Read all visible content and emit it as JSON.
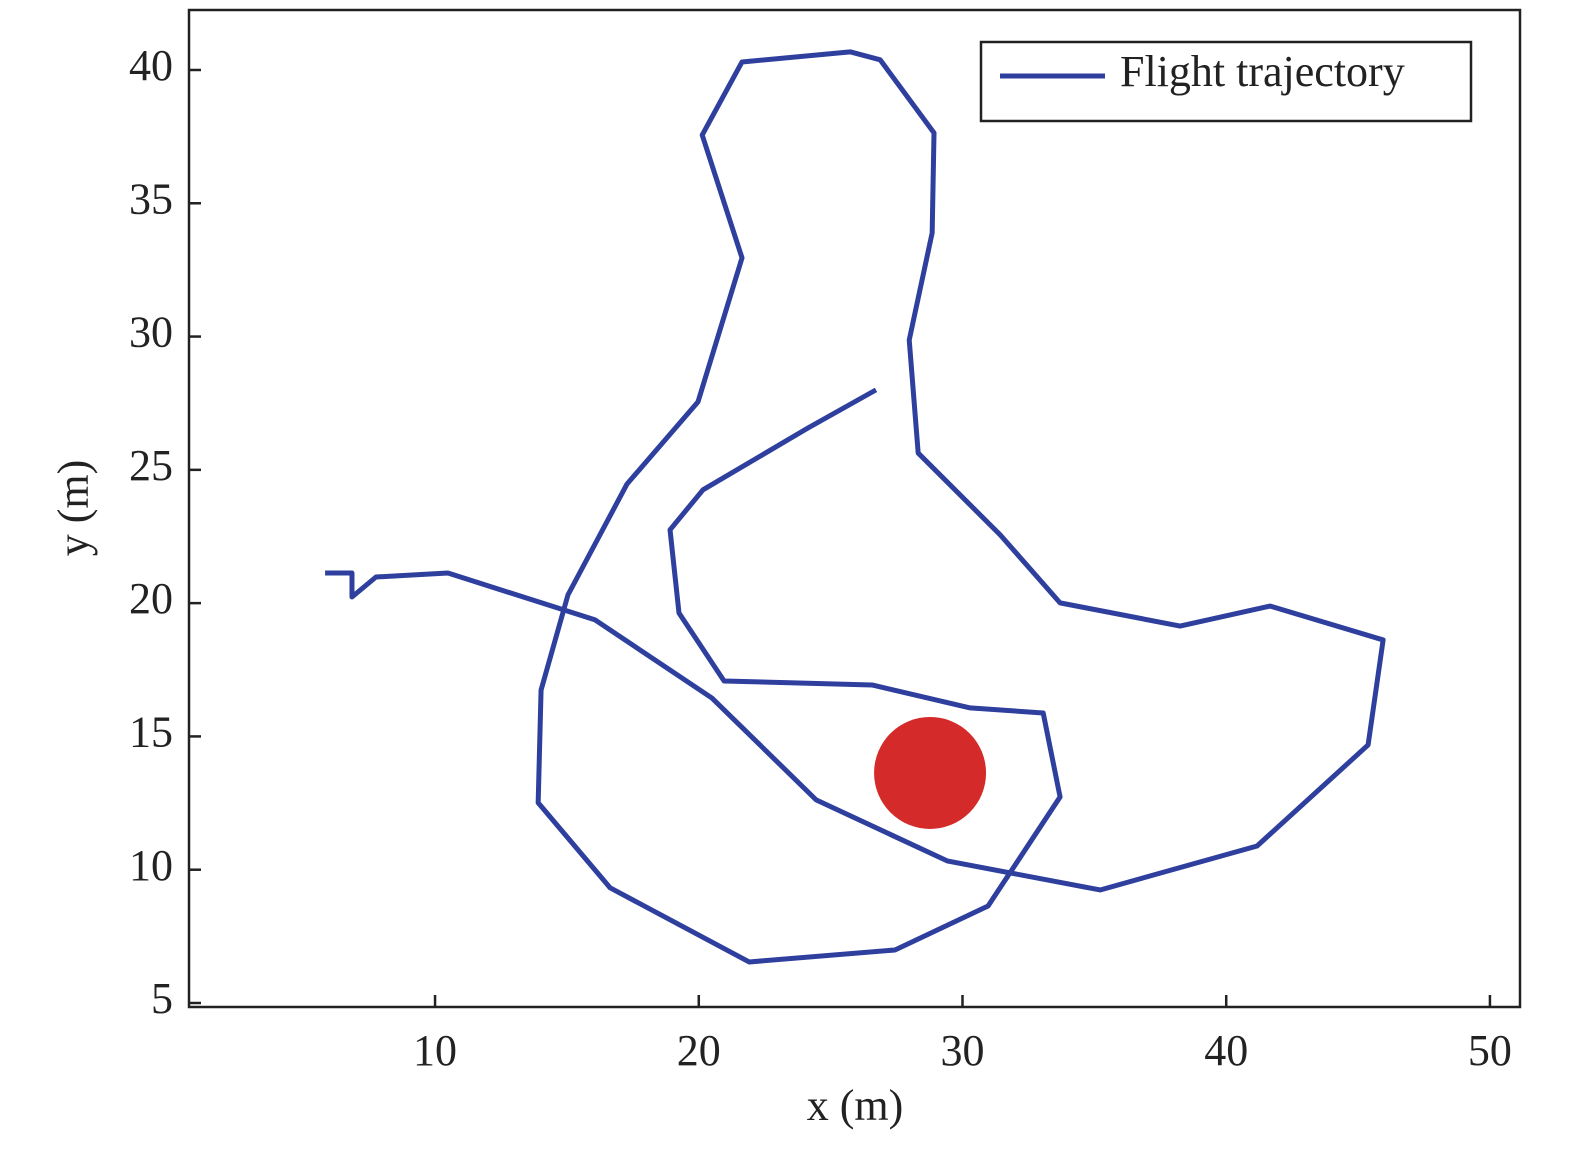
{
  "chart_data": {
    "type": "line",
    "xlabel": "x (m)",
    "ylabel": "y (m)",
    "xlim": [
      0.67,
      51.14
    ],
    "ylim": [
      4.85,
      42.25
    ],
    "xticks": [
      10,
      20,
      30,
      40,
      50
    ],
    "yticks": [
      5,
      10,
      15,
      20,
      25,
      30,
      35,
      40
    ],
    "legend": "upper right",
    "series": [
      {
        "name": "Flight trajectory",
        "color": "#2e3f9e",
        "x": [
          5.83,
          6.85,
          6.85,
          7.76,
          10.49,
          16.07,
          20.5,
          24.45,
          29.42,
          35.22,
          41.17,
          45.38,
          45.95,
          41.66,
          38.25,
          33.7,
          31.43,
          28.32,
          27.98,
          28.85,
          28.92,
          26.88,
          25.74,
          21.64,
          20.13,
          21.64,
          19.97,
          17.28,
          15.04,
          14.02,
          13.91,
          16.64,
          21.91,
          27.44,
          30.97,
          33.7,
          33.06,
          30.29,
          26.57,
          20.96,
          19.25,
          18.91,
          20.16,
          24.14,
          26.72
        ],
        "values": [
          21.13,
          21.13,
          20.23,
          20.98,
          21.13,
          19.37,
          16.44,
          12.62,
          10.33,
          9.24,
          10.89,
          14.68,
          18.62,
          19.89,
          19.14,
          20.01,
          22.56,
          25.63,
          29.87,
          33.89,
          37.64,
          40.38,
          40.68,
          40.3,
          37.56,
          32.95,
          27.55,
          24.47,
          20.31,
          16.74,
          12.51,
          9.32,
          6.54,
          6.99,
          8.64,
          12.73,
          15.88,
          16.07,
          16.93,
          17.08,
          19.63,
          22.75,
          24.25,
          26.57,
          28.0
        ]
      }
    ],
    "marker": {
      "x": 28.77,
      "y": 13.63,
      "color": "#d42a2a"
    }
  }
}
